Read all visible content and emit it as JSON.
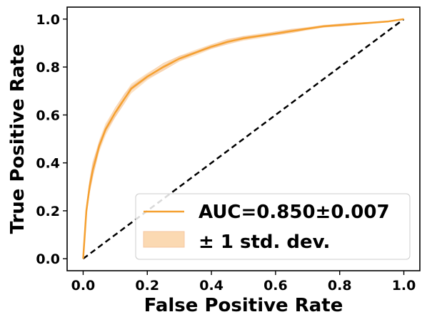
{
  "chart_data": {
    "type": "line",
    "xlabel": "False Positive Rate",
    "ylabel": "True Positive Rate",
    "xlim": [
      -0.05,
      1.05
    ],
    "ylim": [
      -0.05,
      1.05
    ],
    "xticks": [
      "0.0",
      "0.2",
      "0.4",
      "0.6",
      "0.8",
      "1.0"
    ],
    "yticks": [
      "0.0",
      "0.2",
      "0.4",
      "0.6",
      "0.8",
      "1.0"
    ],
    "grid": false,
    "legend_position": "lower-right",
    "colors": {
      "mean": "#f5a030",
      "band": "#fbd9b2",
      "folds": "#f4c6a0",
      "diagonal": "#000000"
    },
    "series": [
      {
        "name": "AUC=0.850±0.007",
        "role": "mean",
        "x": [
          0.0,
          0.01,
          0.02,
          0.03,
          0.05,
          0.07,
          0.1,
          0.13,
          0.15,
          0.2,
          0.25,
          0.3,
          0.35,
          0.4,
          0.45,
          0.5,
          0.55,
          0.6,
          0.65,
          0.7,
          0.75,
          0.8,
          0.85,
          0.9,
          0.95,
          1.0
        ],
        "y": [
          0.0,
          0.2,
          0.3,
          0.37,
          0.47,
          0.54,
          0.61,
          0.67,
          0.71,
          0.76,
          0.8,
          0.835,
          0.86,
          0.885,
          0.905,
          0.92,
          0.93,
          0.94,
          0.95,
          0.96,
          0.97,
          0.975,
          0.98,
          0.985,
          0.99,
          1.0
        ],
        "std": [
          0.0,
          0.03,
          0.03,
          0.03,
          0.025,
          0.025,
          0.02,
          0.02,
          0.02,
          0.015,
          0.015,
          0.012,
          0.012,
          0.01,
          0.01,
          0.01,
          0.01,
          0.008,
          0.008,
          0.007,
          0.006,
          0.005,
          0.005,
          0.004,
          0.003,
          0.0
        ]
      },
      {
        "name": "± 1 std. dev.",
        "role": "band"
      },
      {
        "name": "",
        "role": "diagonal",
        "x": [
          0.0,
          1.0
        ],
        "y": [
          0.0,
          1.0
        ]
      }
    ]
  }
}
